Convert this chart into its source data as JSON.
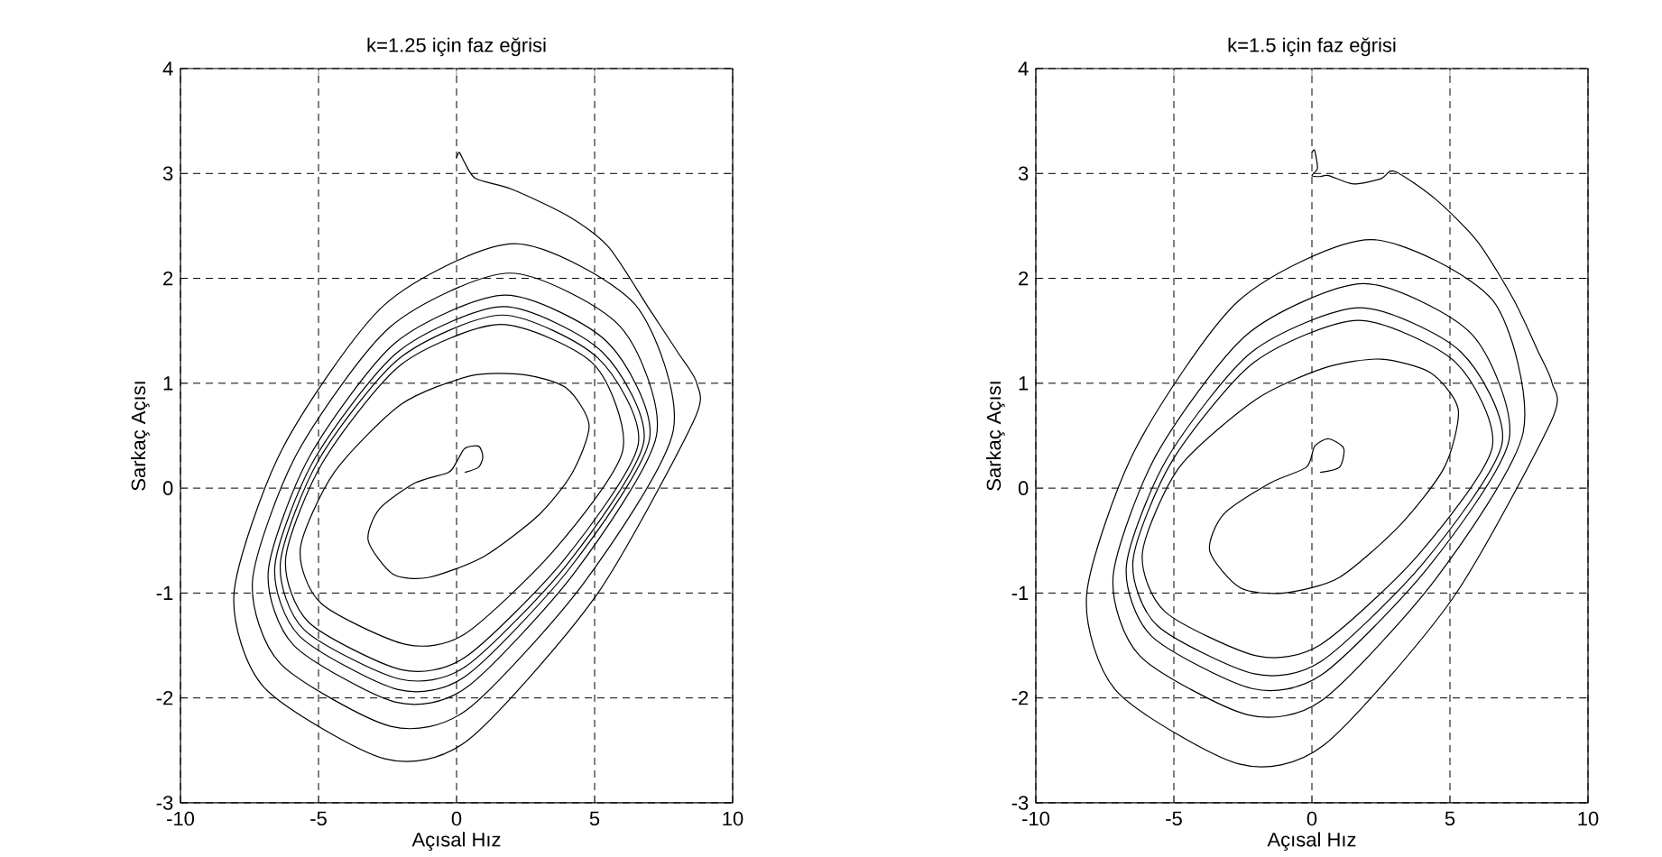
{
  "chart_data": [
    {
      "type": "line",
      "title": "k=1.25 için faz eğrisi",
      "xlabel": "Açısal Hız",
      "ylabel": "Sarkaç Açısı",
      "xlim": [
        -10,
        10
      ],
      "ylim": [
        -3,
        4
      ],
      "xticks": [
        -10,
        -5,
        0,
        5,
        10
      ],
      "yticks": [
        -3,
        -2,
        -1,
        0,
        1,
        2,
        3,
        4
      ],
      "grid": true,
      "series": [
        {
          "color": "#000000",
          "x": [
            0,
            0.1,
            0.3,
            0.7,
            2,
            4,
            5.5,
            7,
            8,
            8.7,
            8.57,
            5.04,
            0.42,
            -2.6,
            -6.97,
            -8.06,
            -6.3,
            -2.6,
            2.1,
            6.47,
            7.85,
            4.62,
            0.39,
            -2.39,
            -6.39,
            -7.39,
            -5.78,
            -2.39,
            1.93,
            5.93,
            7.24,
            4.26,
            0.36,
            -2.2,
            -5.89,
            -6.82,
            -5.33,
            -2.2,
            1.78,
            5.47,
            6.99,
            4.11,
            0.34,
            -2.12,
            -5.69,
            -6.58,
            -5.14,
            -2.12,
            1.71,
            5.27,
            6.78,
            3.99,
            0.33,
            -2.06,
            -5.52,
            -6.38,
            -4.99,
            -2.06,
            1.66,
            5.12,
            6.58,
            3.87,
            0.32,
            -2.0,
            -5.35,
            -6.19,
            -4.84,
            -2.0,
            1.61,
            4.97,
            6.02,
            3.54,
            0.3,
            -1.83,
            -4.9,
            -5.66,
            -4.43,
            -2,
            0.5,
            2.5,
            4,
            4.8,
            4.2,
            3,
            1,
            -1,
            -2.3,
            -3.2,
            -2.8,
            -1.5,
            -0.3,
            0,
            0.3,
            0.8,
            0.95,
            0.8,
            0.3
          ],
          "values": [
            3.15,
            3.2,
            3.1,
            2.95,
            2.85,
            2.6,
            2.3,
            1.7,
            1.3,
            1.0,
            0.63,
            -1.03,
            -2.4,
            -2.58,
            -1.9,
            -1.0,
            0.38,
            1.75,
            2.33,
            1.75,
            0.55,
            -0.9,
            -2.11,
            -2.27,
            -1.67,
            -0.88,
            0.33,
            1.54,
            2.05,
            1.54,
            0.5,
            -0.81,
            -1.9,
            -2.04,
            -1.5,
            -0.79,
            0.3,
            1.39,
            1.84,
            1.39,
            0.47,
            -0.76,
            -1.79,
            -1.92,
            -1.41,
            -0.74,
            0.28,
            1.3,
            1.73,
            1.3,
            0.44,
            -0.73,
            -1.7,
            -1.82,
            -1.35,
            -0.71,
            0.27,
            1.24,
            1.65,
            1.24,
            0.42,
            -0.69,
            -1.61,
            -1.73,
            -1.28,
            -0.67,
            0.25,
            1.18,
            1.56,
            1.18,
            0.36,
            -0.59,
            -1.39,
            -1.49,
            -1.1,
            -0.58,
            0.15,
            0.8,
            1.07,
            1.08,
            0.95,
            0.6,
            0.15,
            -0.25,
            -0.65,
            -0.85,
            -0.82,
            -0.5,
            -0.2,
            0.05,
            0.15,
            0.25,
            0.38,
            0.4,
            0.3,
            0.2,
            0.15
          ]
        }
      ]
    },
    {
      "type": "line",
      "title": "k=1.5 için faz eğrisi",
      "xlabel": "Açısal Hız",
      "ylabel": "Sarkaç Açısı",
      "xlim": [
        -10,
        10
      ],
      "ylim": [
        -3,
        4
      ],
      "xticks": [
        -10,
        -5,
        0,
        5,
        10
      ],
      "yticks": [
        -3,
        -2,
        -1,
        0,
        1,
        2,
        3,
        4
      ],
      "grid": true,
      "series": [
        {
          "color": "#000000",
          "x": [
            0,
            0.1,
            0.2,
            0,
            0.3,
            0.6,
            1.5,
            2.5,
            3,
            4.5,
            6,
            7.3,
            8.2,
            8.7,
            8.67,
            5.1,
            0.43,
            -2.64,
            -7.06,
            -8.16,
            -6.38,
            -2.64,
            2.13,
            6.55,
            7.65,
            4.5,
            0.38,
            -2.33,
            -6.23,
            -7.2,
            -5.63,
            -2.33,
            1.88,
            5.78,
            7.14,
            4.2,
            0.35,
            -2.17,
            -5.81,
            -6.72,
            -5.25,
            -2.17,
            1.75,
            5.39,
            6.89,
            4.05,
            0.34,
            -2.09,
            -5.6,
            -6.48,
            -5.06,
            -2.09,
            1.69,
            5.2,
            6.53,
            3.84,
            0.32,
            -1.98,
            -5.31,
            -6.14,
            -4.8,
            -2,
            0.5,
            2.5,
            4.3,
            5.3,
            4.8,
            3.2,
            1,
            -1,
            -2.6,
            -3.7,
            -3.2,
            -1.5,
            -0.2,
            0.1,
            0.6,
            1.15,
            1.0,
            0.3
          ],
          "values": [
            3.2,
            3.22,
            3.05,
            2.98,
            2.97,
            2.98,
            2.9,
            2.95,
            3.02,
            2.75,
            2.35,
            1.8,
            1.3,
            1.0,
            0.64,
            -1.05,
            -2.45,
            -2.63,
            -1.94,
            -1.02,
            0.38,
            1.79,
            2.37,
            1.79,
            0.53,
            -0.86,
            -2.02,
            -2.16,
            -1.6,
            -0.84,
            0.32,
            1.47,
            1.95,
            1.47,
            0.46,
            -0.76,
            -1.78,
            -1.91,
            -1.41,
            -0.74,
            0.28,
            1.3,
            1.72,
            1.3,
            0.43,
            -0.71,
            -1.65,
            -1.77,
            -1.31,
            -0.69,
            0.26,
            1.2,
            1.6,
            1.2,
            0.39,
            -0.64,
            -1.49,
            -1.6,
            -1.18,
            -0.62,
            0.2,
            0.85,
            1.15,
            1.23,
            1.1,
            0.75,
            0.2,
            -0.35,
            -0.85,
            -1.0,
            -0.95,
            -0.6,
            -0.25,
            0.05,
            0.2,
            0.4,
            0.47,
            0.38,
            0.2,
            0.15
          ]
        }
      ]
    }
  ]
}
